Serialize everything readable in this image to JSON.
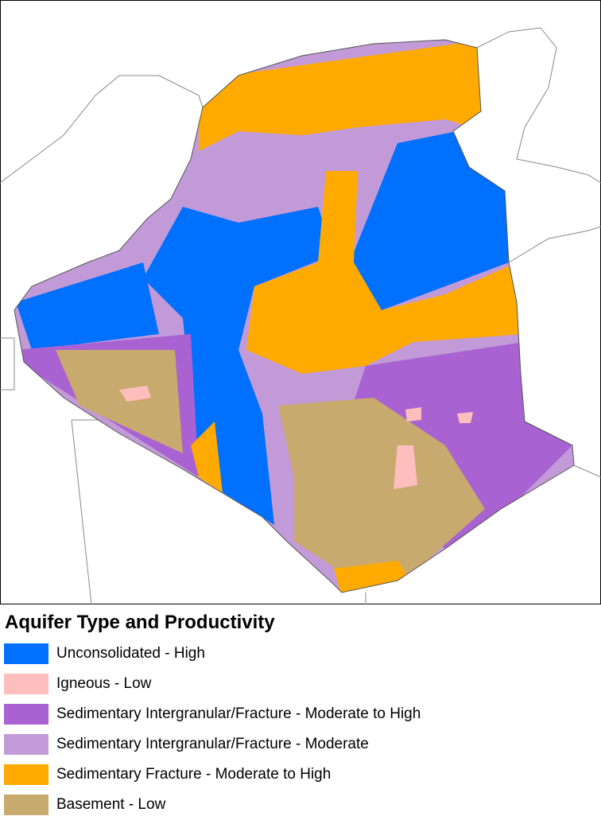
{
  "legend": {
    "title": "Aquifer Type and Productivity",
    "items": [
      {
        "label": "Unconsolidated - High",
        "color": "#0070ff"
      },
      {
        "label": "Igneous - Low",
        "color": "#ffbebe"
      },
      {
        "label": "Sedimentary Intergranular/Fracture - Moderate to High",
        "color": "#a862d2"
      },
      {
        "label": "Sedimentary Intergranular/Fracture - Moderate",
        "color": "#c39ad8"
      },
      {
        "label": "Sedimentary Fracture - Moderate to High",
        "color": "#ffaa00"
      },
      {
        "label": "Basement - Low",
        "color": "#c8aa6e"
      }
    ]
  }
}
